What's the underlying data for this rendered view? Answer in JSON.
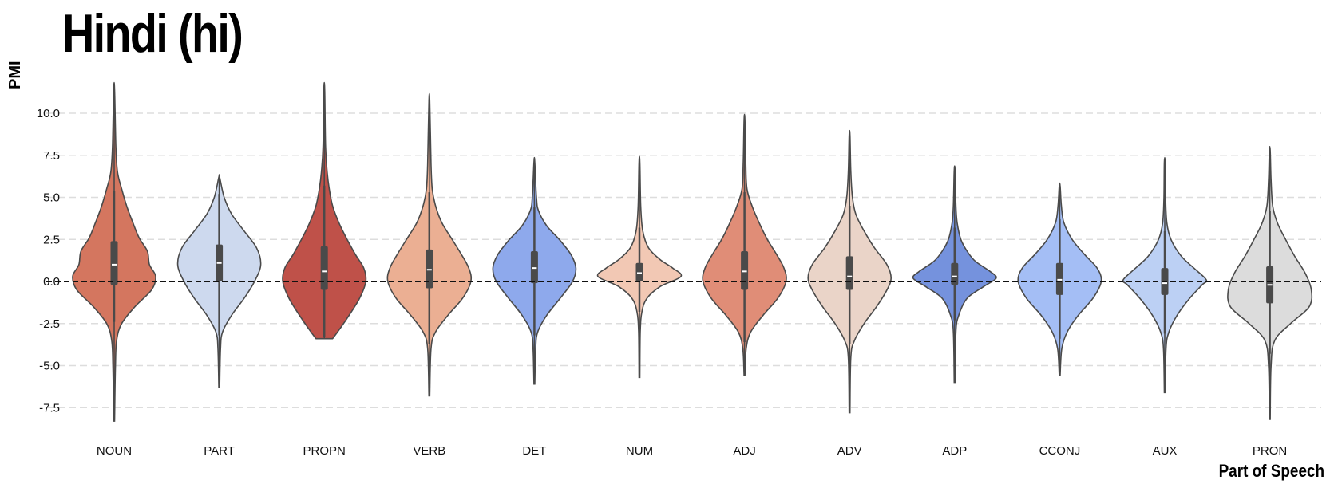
{
  "chart_data": {
    "type": "violin",
    "title": "Hindi (hi)",
    "xlabel": "Part of Speech",
    "ylabel": "PMI",
    "ylim": [
      -8.5,
      11.5
    ],
    "yticks": [
      "10.0",
      "7.5",
      "5.0",
      "2.5",
      "0.0",
      "-2.5",
      "-5.0",
      "-7.5"
    ],
    "ytick_values": [
      10.0,
      7.5,
      5.0,
      2.5,
      0.0,
      -2.5,
      -5.0,
      -7.5
    ],
    "grid": "horizontal dashed",
    "reference_line": 0.0,
    "categories": [
      "NOUN",
      "PART",
      "PROPN",
      "VERB",
      "DET",
      "NUM",
      "ADJ",
      "ADV",
      "ADP",
      "CCONJ",
      "AUX",
      "PRON"
    ],
    "series": [
      {
        "name": "NOUN",
        "color": "#d4765f",
        "min": -8.3,
        "max": 11.4,
        "q1": -0.2,
        "median": 1.0,
        "q3": 2.4,
        "whisker_low": -2.4,
        "whisker_high": 5.4,
        "density": [
          [
            -8.3,
            0.01
          ],
          [
            -5.0,
            0.03
          ],
          [
            -3.5,
            0.06
          ],
          [
            -2.5,
            0.18
          ],
          [
            -1.5,
            0.5
          ],
          [
            -0.5,
            0.9
          ],
          [
            0.3,
            1.0
          ],
          [
            1.0,
            0.85
          ],
          [
            1.8,
            0.8
          ],
          [
            2.6,
            0.6
          ],
          [
            3.5,
            0.45
          ],
          [
            4.5,
            0.3
          ],
          [
            5.5,
            0.18
          ],
          [
            6.5,
            0.08
          ],
          [
            8.0,
            0.04
          ],
          [
            11.4,
            0.01
          ]
        ]
      },
      {
        "name": "PART",
        "color": "#cdd9ee",
        "min": -6.3,
        "max": 6.2,
        "q1": 0.0,
        "median": 1.1,
        "q3": 2.2,
        "whisker_low": -3.2,
        "whisker_high": 5.2,
        "density": [
          [
            -6.3,
            0.01
          ],
          [
            -4.0,
            0.03
          ],
          [
            -3.0,
            0.08
          ],
          [
            -2.0,
            0.3
          ],
          [
            -1.0,
            0.6
          ],
          [
            0.0,
            0.85
          ],
          [
            1.0,
            1.0
          ],
          [
            2.0,
            0.9
          ],
          [
            3.0,
            0.6
          ],
          [
            4.0,
            0.3
          ],
          [
            5.0,
            0.12
          ],
          [
            6.2,
            0.01
          ]
        ]
      },
      {
        "name": "PROPN",
        "color": "#bf5149",
        "min": -3.4,
        "max": 11.4,
        "q1": -0.5,
        "median": 0.6,
        "q3": 2.1,
        "whisker_low": -3.3,
        "whisker_high": 5.7,
        "density": [
          [
            -3.4,
            0.2
          ],
          [
            -2.9,
            0.35
          ],
          [
            -2.0,
            0.6
          ],
          [
            -1.0,
            0.85
          ],
          [
            0.0,
            1.0
          ],
          [
            0.8,
            0.95
          ],
          [
            1.6,
            0.75
          ],
          [
            2.5,
            0.55
          ],
          [
            3.5,
            0.35
          ],
          [
            4.5,
            0.2
          ],
          [
            5.5,
            0.12
          ],
          [
            6.5,
            0.07
          ],
          [
            8.0,
            0.03
          ],
          [
            11.4,
            0.01
          ]
        ]
      },
      {
        "name": "VERB",
        "color": "#ebaf93",
        "min": -6.8,
        "max": 10.7,
        "q1": -0.4,
        "median": 0.7,
        "q3": 1.9,
        "whisker_low": -3.7,
        "whisker_high": 5.3,
        "density": [
          [
            -6.8,
            0.01
          ],
          [
            -4.0,
            0.04
          ],
          [
            -3.0,
            0.15
          ],
          [
            -2.0,
            0.45
          ],
          [
            -1.0,
            0.8
          ],
          [
            0.0,
            1.0
          ],
          [
            0.8,
            0.95
          ],
          [
            1.7,
            0.75
          ],
          [
            2.5,
            0.55
          ],
          [
            3.5,
            0.3
          ],
          [
            4.5,
            0.15
          ],
          [
            5.5,
            0.07
          ],
          [
            7.0,
            0.04
          ],
          [
            10.7,
            0.01
          ]
        ]
      },
      {
        "name": "DET",
        "color": "#8ea9ec",
        "min": -6.1,
        "max": 7.1,
        "q1": -0.1,
        "median": 0.8,
        "q3": 1.8,
        "whisker_low": -3.2,
        "whisker_high": 4.4,
        "density": [
          [
            -6.1,
            0.01
          ],
          [
            -4.0,
            0.03
          ],
          [
            -3.0,
            0.08
          ],
          [
            -2.0,
            0.3
          ],
          [
            -1.0,
            0.62
          ],
          [
            0.0,
            0.92
          ],
          [
            0.8,
            1.0
          ],
          [
            1.6,
            0.88
          ],
          [
            2.5,
            0.6
          ],
          [
            3.3,
            0.3
          ],
          [
            4.2,
            0.1
          ],
          [
            5.0,
            0.05
          ],
          [
            7.1,
            0.01
          ]
        ]
      },
      {
        "name": "NUM",
        "color": "#f2c8b4",
        "min": -5.7,
        "max": 7.1,
        "q1": 0.0,
        "median": 0.5,
        "q3": 1.1,
        "whisker_low": -1.8,
        "whisker_high": 3.2,
        "density": [
          [
            -5.7,
            0.01
          ],
          [
            -3.0,
            0.02
          ],
          [
            -1.8,
            0.06
          ],
          [
            -1.0,
            0.18
          ],
          [
            -0.3,
            0.5
          ],
          [
            0.3,
            1.0
          ],
          [
            0.8,
            0.8
          ],
          [
            1.3,
            0.5
          ],
          [
            2.0,
            0.22
          ],
          [
            3.0,
            0.08
          ],
          [
            4.5,
            0.03
          ],
          [
            7.1,
            0.01
          ]
        ]
      },
      {
        "name": "ADJ",
        "color": "#e08d77",
        "min": -5.6,
        "max": 9.6,
        "q1": -0.5,
        "median": 0.6,
        "q3": 1.8,
        "whisker_low": -3.6,
        "whisker_high": 5.3,
        "density": [
          [
            -5.6,
            0.01
          ],
          [
            -4.0,
            0.04
          ],
          [
            -3.0,
            0.15
          ],
          [
            -2.0,
            0.45
          ],
          [
            -1.0,
            0.8
          ],
          [
            0.0,
            1.0
          ],
          [
            0.8,
            0.95
          ],
          [
            1.7,
            0.75
          ],
          [
            2.5,
            0.55
          ],
          [
            3.5,
            0.35
          ],
          [
            4.5,
            0.18
          ],
          [
            5.5,
            0.06
          ],
          [
            7.0,
            0.03
          ],
          [
            9.6,
            0.01
          ]
        ]
      },
      {
        "name": "ADV",
        "color": "#ead4c8",
        "min": -7.8,
        "max": 8.7,
        "q1": -0.5,
        "median": 0.3,
        "q3": 1.5,
        "whisker_low": -3.7,
        "whisker_high": 4.5,
        "density": [
          [
            -7.8,
            0.01
          ],
          [
            -4.5,
            0.03
          ],
          [
            -3.5,
            0.12
          ],
          [
            -2.5,
            0.35
          ],
          [
            -1.5,
            0.65
          ],
          [
            -0.5,
            0.9
          ],
          [
            0.2,
            1.0
          ],
          [
            1.0,
            0.9
          ],
          [
            2.0,
            0.6
          ],
          [
            3.0,
            0.35
          ],
          [
            4.0,
            0.15
          ],
          [
            5.0,
            0.07
          ],
          [
            6.5,
            0.03
          ],
          [
            8.7,
            0.01
          ]
        ]
      },
      {
        "name": "ADP",
        "color": "#7592dd",
        "min": -6.0,
        "max": 6.6,
        "q1": -0.2,
        "median": 0.3,
        "q3": 1.1,
        "whisker_low": -2.3,
        "whisker_high": 3.2,
        "density": [
          [
            -6.0,
            0.01
          ],
          [
            -3.0,
            0.03
          ],
          [
            -2.0,
            0.1
          ],
          [
            -1.0,
            0.3
          ],
          [
            -0.3,
            0.7
          ],
          [
            0.2,
            1.0
          ],
          [
            0.6,
            0.85
          ],
          [
            1.2,
            0.5
          ],
          [
            1.8,
            0.3
          ],
          [
            2.5,
            0.15
          ],
          [
            3.5,
            0.06
          ],
          [
            4.5,
            0.03
          ],
          [
            6.6,
            0.01
          ]
        ]
      },
      {
        "name": "CCONJ",
        "color": "#a4bef5",
        "min": -5.6,
        "max": 5.7,
        "q1": -0.8,
        "median": 0.1,
        "q3": 1.1,
        "whisker_low": -3.4,
        "whisker_high": 3.7,
        "density": [
          [
            -5.6,
            0.01
          ],
          [
            -4.0,
            0.05
          ],
          [
            -3.0,
            0.18
          ],
          [
            -2.0,
            0.45
          ],
          [
            -1.0,
            0.8
          ],
          [
            0.0,
            1.0
          ],
          [
            0.8,
            0.9
          ],
          [
            1.6,
            0.6
          ],
          [
            2.5,
            0.3
          ],
          [
            3.5,
            0.1
          ],
          [
            4.5,
            0.04
          ],
          [
            5.7,
            0.01
          ]
        ]
      },
      {
        "name": "AUX",
        "color": "#bcd0f4",
        "min": -6.6,
        "max": 7.1,
        "q1": -0.8,
        "median": -0.1,
        "q3": 0.8,
        "whisker_low": -3.1,
        "whisker_high": 3.0,
        "density": [
          [
            -6.6,
            0.01
          ],
          [
            -4.0,
            0.03
          ],
          [
            -3.0,
            0.1
          ],
          [
            -2.0,
            0.3
          ],
          [
            -1.0,
            0.6
          ],
          [
            -0.2,
            0.9
          ],
          [
            0.1,
            1.0
          ],
          [
            0.8,
            0.7
          ],
          [
            1.5,
            0.4
          ],
          [
            2.5,
            0.15
          ],
          [
            3.5,
            0.05
          ],
          [
            5.0,
            0.02
          ],
          [
            7.1,
            0.01
          ]
        ]
      },
      {
        "name": "PRON",
        "color": "#dcdcdc",
        "min": -8.2,
        "max": 7.8,
        "q1": -1.3,
        "median": -0.2,
        "q3": 0.9,
        "whisker_low": -4.3,
        "whisker_high": 4.2,
        "density": [
          [
            -8.2,
            0.01
          ],
          [
            -5.0,
            0.03
          ],
          [
            -3.5,
            0.12
          ],
          [
            -2.5,
            0.5
          ],
          [
            -1.5,
            0.95
          ],
          [
            -0.5,
            1.0
          ],
          [
            0.5,
            0.85
          ],
          [
            1.5,
            0.6
          ],
          [
            2.5,
            0.38
          ],
          [
            3.5,
            0.18
          ],
          [
            4.5,
            0.07
          ],
          [
            6.0,
            0.03
          ],
          [
            7.8,
            0.01
          ]
        ]
      }
    ]
  }
}
